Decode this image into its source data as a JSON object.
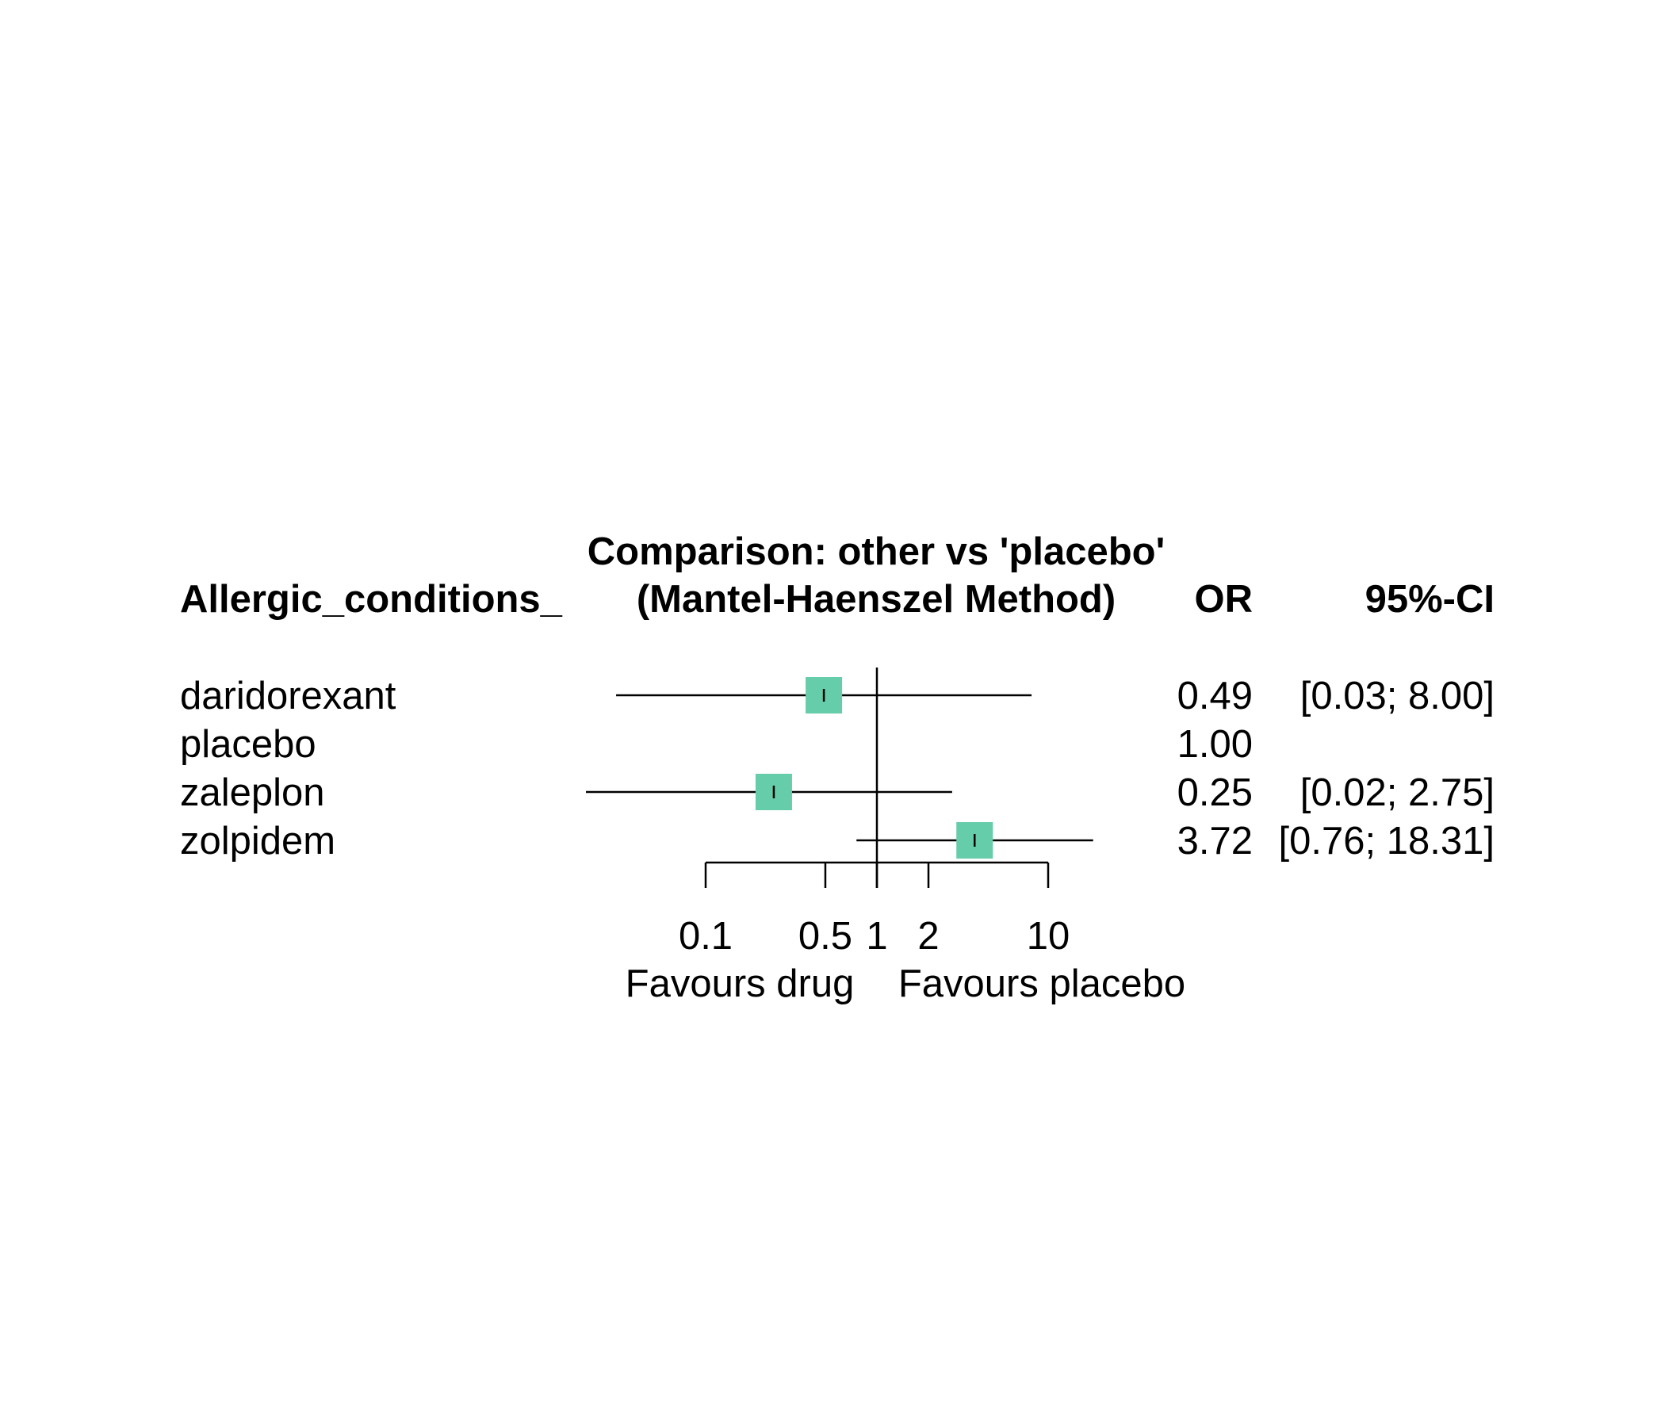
{
  "chart_data": {
    "type": "forest",
    "title": "Comparison: other vs 'placebo'",
    "subtitle": "(Mantel-Haenszel Method)",
    "group_header": "Allergic_conditions_",
    "col_or_header": "OR",
    "col_ci_header": "95%-CI",
    "x_scale": "log",
    "reference_value": 1,
    "x_ticks": [
      0.1,
      0.5,
      1,
      2,
      10
    ],
    "x_tick_labels": [
      "0.1",
      "0.5",
      "1",
      "2",
      "10"
    ],
    "x_range": [
      0.1,
      10
    ],
    "xlabel_left": "Favours drug",
    "xlabel_right": "Favours placebo",
    "marker_color": "#66CDAA",
    "rows": [
      {
        "label": "daridorexant",
        "or": 0.49,
        "lower": 0.03,
        "upper": 8.0,
        "or_text": "0.49",
        "ci_text": "[0.03;  8.00]"
      },
      {
        "label": "placebo",
        "or": 1.0,
        "lower": null,
        "upper": null,
        "or_text": "1.00",
        "ci_text": ""
      },
      {
        "label": "zaleplon",
        "or": 0.25,
        "lower": 0.02,
        "upper": 2.75,
        "or_text": "0.25",
        "ci_text": "[0.02;  2.75]"
      },
      {
        "label": "zolpidem",
        "or": 3.72,
        "lower": 0.76,
        "upper": 18.31,
        "or_text": "3.72",
        "ci_text": "[0.76; 18.31]"
      }
    ]
  }
}
